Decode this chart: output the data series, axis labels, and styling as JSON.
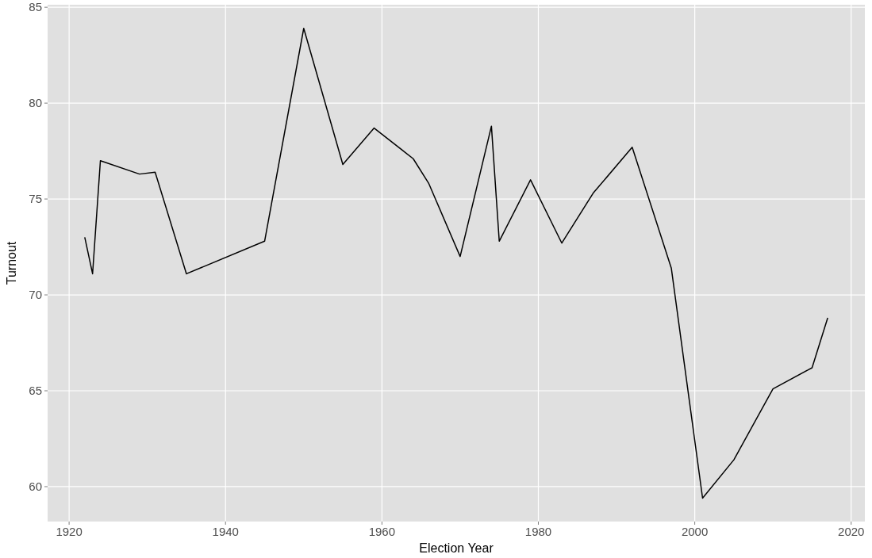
{
  "chart_data": {
    "type": "line",
    "xlabel": "Election Year",
    "ylabel": "Turnout",
    "x": [
      1922,
      1923,
      1924,
      1929,
      1931,
      1935,
      1945,
      1950,
      1955,
      1959,
      1964,
      1966,
      1970,
      1974,
      1975,
      1979,
      1983,
      1987,
      1992,
      1997,
      2001,
      2005,
      2010,
      2015,
      2017
    ],
    "series": [
      {
        "color": "#000000",
        "values": [
          73.0,
          71.1,
          77.0,
          76.3,
          76.4,
          71.1,
          72.8,
          83.9,
          76.8,
          78.7,
          77.1,
          75.8,
          72.0,
          78.8,
          72.8,
          76.0,
          72.7,
          75.3,
          77.7,
          71.4,
          59.4,
          61.4,
          65.1,
          66.2,
          68.8
        ]
      }
    ],
    "xlim": [
      1917.25,
      2021.75
    ],
    "ylim": [
      58.18,
      85.13
    ],
    "xticks": [
      1920,
      1940,
      1960,
      1980,
      2000,
      2020
    ],
    "yticks": [
      60,
      65,
      70,
      75,
      80,
      85
    ],
    "grid": true,
    "marker": "none",
    "line_style": "solid"
  }
}
